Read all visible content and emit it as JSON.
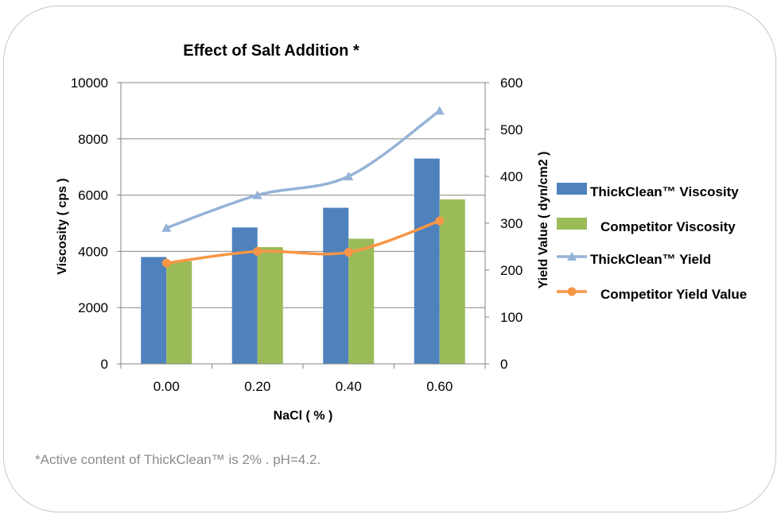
{
  "chart_data": {
    "type": "bar",
    "title": "Effect of Salt Addition  *",
    "xlabel": "NaCl ( % )",
    "ylabel": "Viscosity ( cps )",
    "y2label": "Yield Value ( dyn/cm2 )",
    "categories": [
      "0.00",
      "0.20",
      "0.40",
      "0.60"
    ],
    "ylim": [
      0,
      10000
    ],
    "y2lim": [
      0,
      600
    ],
    "yticks": [
      "0",
      "2000",
      "4000",
      "6000",
      "8000",
      "10000"
    ],
    "y2ticks": [
      "0",
      "100",
      "200",
      "300",
      "400",
      "500",
      "600"
    ],
    "series": [
      {
        "name": "ThickClean™ Viscosity",
        "type": "bar",
        "axis": "left",
        "color": "#4f81bd",
        "values": [
          3800,
          4850,
          5550,
          7300
        ]
      },
      {
        "name": "Competitor Viscosity",
        "type": "bar",
        "axis": "left",
        "color": "#9bbb59",
        "values": [
          3650,
          4150,
          4450,
          5850
        ]
      },
      {
        "name": "ThickClean™  Yield",
        "type": "line",
        "axis": "right",
        "color": "#95b3d7",
        "marker": "triangle",
        "values": [
          290,
          360,
          400,
          540
        ]
      },
      {
        "name": "Competitor Yield Value",
        "type": "line",
        "axis": "right",
        "color": "#f79646",
        "marker": "circle",
        "values": [
          215,
          240,
          238,
          305
        ]
      }
    ],
    "grid": true,
    "legend": "right"
  },
  "footnote": "*Active content of ThickClean™ is 2% . pH=4.2."
}
